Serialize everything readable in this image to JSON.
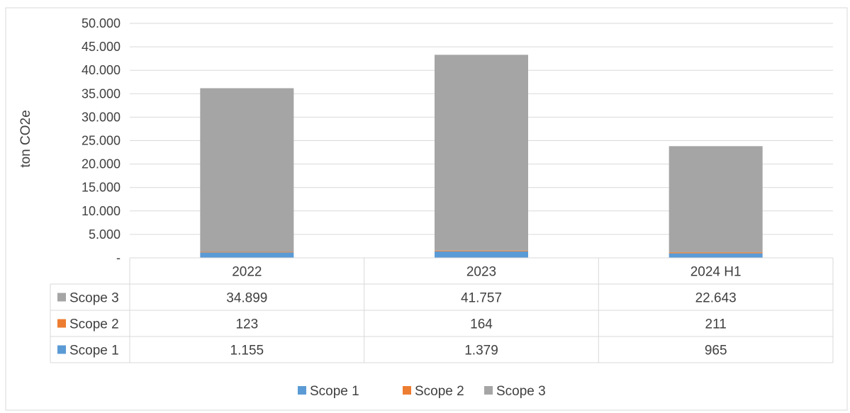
{
  "caption": "",
  "chart_data": {
    "type": "bar",
    "stacked": true,
    "categories": [
      "2022",
      "2023",
      "2024 H1"
    ],
    "series": [
      {
        "name": "Scope 1",
        "values": [
          1155,
          1379,
          965
        ],
        "labels": [
          "1.155",
          "1.379",
          "965"
        ],
        "color": "#5B9BD5"
      },
      {
        "name": "Scope 2",
        "values": [
          123,
          164,
          211
        ],
        "labels": [
          "123",
          "164",
          "211"
        ],
        "color": "#ED7D31"
      },
      {
        "name": "Scope 3",
        "values": [
          34899,
          41757,
          22643
        ],
        "labels": [
          "34.899",
          "41.757",
          "22.643"
        ],
        "color": "#A5A5A5"
      }
    ],
    "ylabel": "ton CO2e",
    "ylim": [
      0,
      50000
    ],
    "yticks": [
      0,
      5000,
      10000,
      15000,
      20000,
      25000,
      30000,
      35000,
      40000,
      45000,
      50000
    ],
    "ytick_labels": [
      "-",
      "5.000",
      "10.000",
      "15.000",
      "20.000",
      "25.000",
      "30.000",
      "35.000",
      "40.000",
      "45.000",
      "50.000"
    ],
    "grid": true,
    "data_table": true,
    "legend_position": "bottom"
  }
}
